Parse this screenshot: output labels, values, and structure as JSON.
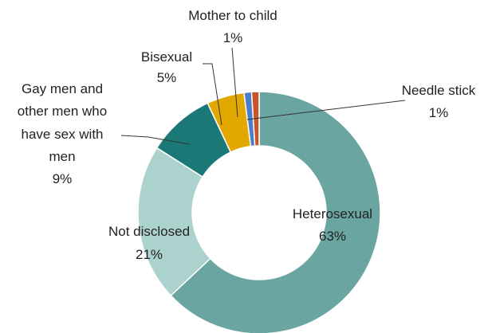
{
  "chart_data": {
    "type": "pie",
    "title": "",
    "slices": [
      {
        "name": "Heterosexual",
        "value": 63,
        "label": "63%",
        "color": "#6aa5a2"
      },
      {
        "name": "Not disclosed",
        "value": 21,
        "label": "21%",
        "color": "#acd2cd"
      },
      {
        "name": "Gay men and other men who have sex with men",
        "value": 9,
        "label": "9%",
        "color": "#1a7877"
      },
      {
        "name": "Bisexual",
        "value": 5,
        "label": "5%",
        "color": "#e2a800"
      },
      {
        "name": "Mother to child",
        "value": 1,
        "label": "1%",
        "color": "#4a7ec8"
      },
      {
        "name": "Needle stick",
        "value": 1,
        "label": "1%",
        "color": "#c8542a"
      }
    ],
    "labels": {
      "heterosexual": {
        "lines": [
          "Heterosexual",
          "63%"
        ]
      },
      "not_disclosed": {
        "lines": [
          "Not disclosed",
          "21%"
        ]
      },
      "msm": {
        "lines": [
          "Gay men and",
          "other men who",
          "have sex with",
          "men",
          "9%"
        ]
      },
      "bisexual": {
        "lines": [
          "Bisexual",
          "5%"
        ]
      },
      "mother_to_child": {
        "lines": [
          "Mother to child",
          "1%"
        ]
      },
      "needle_stick": {
        "lines": [
          "Needle stick",
          "1%"
        ]
      }
    },
    "donut": true,
    "legend": "none"
  }
}
